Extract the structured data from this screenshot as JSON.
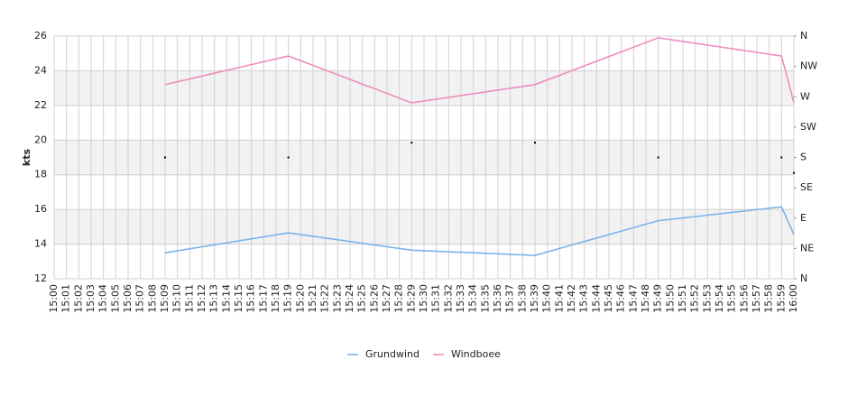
{
  "chart_data": {
    "type": "line",
    "y_label": "kts",
    "categories": [
      "15:00",
      "15:01",
      "15:02",
      "15:03",
      "15:04",
      "15:05",
      "15:06",
      "15:07",
      "15:08",
      "15:09",
      "15:10",
      "15:11",
      "15:12",
      "15:13",
      "15:14",
      "15:15",
      "15:16",
      "15:17",
      "15:18",
      "15:19",
      "15:20",
      "15:21",
      "15:22",
      "15:23",
      "15:24",
      "15:25",
      "15:26",
      "15:27",
      "15:28",
      "15:29",
      "15:30",
      "15:31",
      "15:32",
      "15:33",
      "15:34",
      "15:35",
      "15:36",
      "15:37",
      "15:38",
      "15:39",
      "15:40",
      "15:41",
      "15:42",
      "15:43",
      "15:44",
      "15:45",
      "15:46",
      "15:47",
      "15:48",
      "15:49",
      "15:50",
      "15:51",
      "15:52",
      "15:53",
      "15:54",
      "15:55",
      "15:56",
      "15:57",
      "15:58",
      "15:59",
      "16:00"
    ],
    "series": [
      {
        "name": "Grundwind",
        "color": "#7ab4ea",
        "x": [
          "15:09",
          "15:19",
          "15:29",
          "15:39",
          "15:49",
          "15:59",
          "16:00"
        ],
        "values": [
          13.5,
          14.65,
          13.65,
          13.35,
          15.35,
          16.15,
          14.55
        ]
      },
      {
        "name": "Windboee",
        "color": "#f08cbf",
        "x": [
          "15:09",
          "15:19",
          "15:29",
          "15:39",
          "15:49",
          "15:59",
          "16:00"
        ],
        "values": [
          23.2,
          24.85,
          22.15,
          23.2,
          25.9,
          24.85,
          22.15
        ]
      },
      {
        "color": "#000000",
        "axis": "y2",
        "markers_only": true,
        "x": [
          "15:09",
          "15:19",
          "15:29",
          "15:39",
          "15:49",
          "15:59",
          "16:00"
        ],
        "values": [
          180,
          180,
          202,
          202,
          180,
          180,
          157
        ]
      }
    ],
    "ylim": [
      12,
      26
    ],
    "yticks": [
      12,
      14,
      16,
      18,
      20,
      22,
      24,
      26
    ],
    "y2lim": [
      0,
      360
    ],
    "y2ticks": [
      {
        "value": 0,
        "label": "N"
      },
      {
        "value": 45,
        "label": "NE"
      },
      {
        "value": 90,
        "label": "E"
      },
      {
        "value": 135,
        "label": "SE"
      },
      {
        "value": 180,
        "label": "S"
      },
      {
        "value": 225,
        "label": "SW"
      },
      {
        "value": 270,
        "label": "W"
      },
      {
        "value": 315,
        "label": "NW"
      },
      {
        "value": 360,
        "label": "N"
      }
    ],
    "grid": true,
    "legend": "bottom"
  }
}
